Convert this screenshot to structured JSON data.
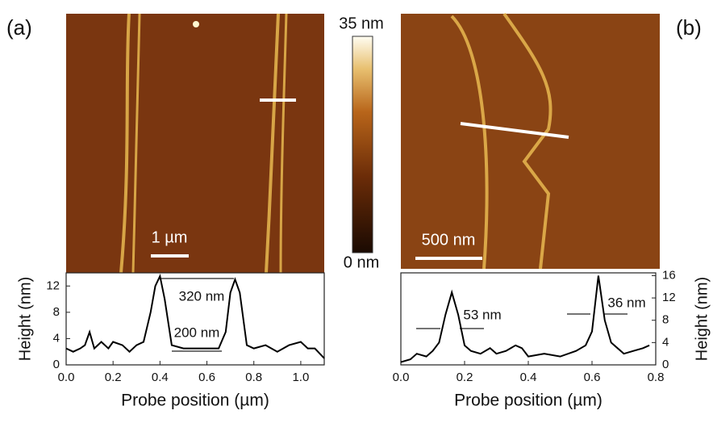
{
  "panels": {
    "a": {
      "label": "(a)",
      "scale_bar": "1 µm"
    },
    "b": {
      "label": "(b)",
      "scale_bar": "500 nm"
    }
  },
  "colorbar": {
    "max_label": "35 nm",
    "min_label": "0 nm"
  },
  "chart_data": [
    {
      "type": "line",
      "xlabel": "Probe position (µm)",
      "ylabel": "Height (nm)",
      "x": [
        0,
        0.03,
        0.06,
        0.08,
        0.1,
        0.12,
        0.15,
        0.18,
        0.2,
        0.24,
        0.27,
        0.3,
        0.33,
        0.36,
        0.38,
        0.4,
        0.42,
        0.45,
        0.5,
        0.55,
        0.6,
        0.65,
        0.68,
        0.7,
        0.72,
        0.74,
        0.77,
        0.8,
        0.85,
        0.9,
        0.95,
        1.0,
        1.03,
        1.06,
        1.1
      ],
      "series": [
        {
          "color": "#000000",
          "values": [
            2.5,
            2,
            2.5,
            3,
            5,
            2.5,
            3.5,
            2.5,
            3.5,
            3,
            2,
            3,
            3.5,
            8,
            12,
            13.5,
            10,
            3,
            2.5,
            2.5,
            2.5,
            2.5,
            5,
            11,
            13,
            11,
            3,
            2.5,
            3,
            2,
            3,
            3.5,
            2.5,
            2.5,
            1
          ]
        }
      ],
      "xlim": [
        0,
        1.1
      ],
      "xticks": [
        {
          "value": 0,
          "label": "0.0"
        },
        0.2,
        0.4,
        0.6,
        0.8,
        {
          "value": 1,
          "label": "1.0"
        }
      ],
      "ylim": [
        0,
        14
      ],
      "yticks": [
        0,
        4,
        8,
        12
      ],
      "annotations": [
        "320 nm",
        "200 nm"
      ]
    },
    {
      "type": "line",
      "xlabel": "Probe position (µm)",
      "y2label": "Height (nm)",
      "x": [
        0,
        0.03,
        0.05,
        0.08,
        0.1,
        0.12,
        0.14,
        0.16,
        0.18,
        0.2,
        0.22,
        0.25,
        0.28,
        0.3,
        0.33,
        0.36,
        0.38,
        0.4,
        0.45,
        0.5,
        0.55,
        0.58,
        0.6,
        0.62,
        0.64,
        0.66,
        0.7,
        0.73,
        0.76,
        0.78
      ],
      "series": [
        {
          "color": "#000000",
          "axis": "y2",
          "values": [
            0.5,
            1,
            2,
            1.5,
            2.5,
            4,
            9,
            13,
            9,
            3.5,
            2.5,
            2,
            3,
            2,
            2.5,
            3.5,
            3,
            1.5,
            2,
            1.5,
            2.5,
            3.5,
            6,
            16,
            8,
            4,
            2,
            2.5,
            3,
            3.5
          ]
        }
      ],
      "xlim": [
        0,
        0.8
      ],
      "xticks": [
        {
          "value": 0,
          "label": "0.0"
        },
        0.2,
        0.4,
        0.6,
        0.8
      ],
      "y2lim": [
        0,
        16.5
      ],
      "y2ticks": [
        0,
        4,
        8,
        12,
        16
      ],
      "annotations": [
        "53 nm",
        "36 nm"
      ]
    }
  ]
}
